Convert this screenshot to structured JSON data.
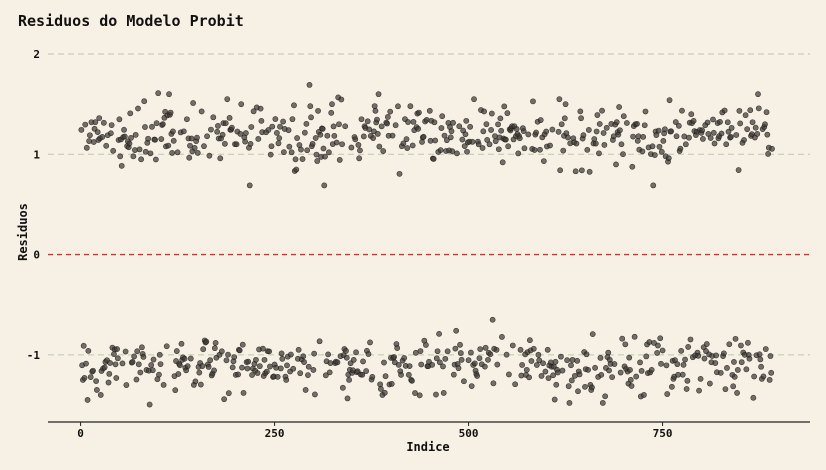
{
  "colors": {
    "background": "#f7f0e4",
    "point": "#3e3a36",
    "reference_line": "#d9302a",
    "grid": "#b9c9a8"
  },
  "chart_data": {
    "type": "scatter",
    "title": "Residuos do Modelo Probit",
    "xlabel": "Indice",
    "ylabel": "Residuos",
    "xlim": [
      -42,
      940
    ],
    "ylim": [
      -1.67,
      2.2
    ],
    "x_ticks": [
      0,
      250,
      500,
      750
    ],
    "x_tick_labels": [
      "0",
      "250",
      "500",
      "750"
    ],
    "y_ticks": [
      -1,
      0,
      1,
      2
    ],
    "y_tick_labels": [
      "-1",
      "0",
      "1",
      "2"
    ],
    "grid": "horizontal dashed at y ticks",
    "reference_line": {
      "y": 0,
      "style": "dashed",
      "color": "#d9302a"
    },
    "series": [
      {
        "n_points": 891,
        "x_start": 1,
        "x_end": 891,
        "positive_cluster": {
          "center": 1.2,
          "approx_range": [
            0.7,
            1.95
          ],
          "values_sample": [
            1.1,
            0.92,
            1.3,
            1.22,
            1.25,
            1.18,
            1.15,
            1.2,
            1.02,
            1.28,
            1.6,
            1.45,
            1.35,
            0.85,
            1.32,
            1.44,
            1.38,
            1.2,
            1.1,
            1.15,
            0.98,
            1.26,
            1.52,
            1.05,
            1.2,
            1.3,
            1.76,
            0.95,
            1.62,
            1.4,
            1.08,
            1.55,
            1.12,
            1.62,
            0.69,
            1.42,
            1.3,
            1.25,
            0.8,
            1.53,
            1.35,
            1.18,
            1.48,
            1.54,
            1.2,
            1.61,
            1.3,
            1.1,
            1.45,
            1.22,
            1.38,
            1.52,
            1.1,
            1.5,
            1.3,
            0.96,
            0.74,
            1.5,
            1.1,
            1.22,
            1.6,
            1.95,
            1.3,
            1.0,
            0.82,
            1.28,
            1.2
          ]
        },
        "negative_cluster": {
          "center": -1.1,
          "approx_range": [
            -1.5,
            -0.65
          ],
          "values_sample": [
            -1.25,
            -1.0,
            -0.95,
            -1.22,
            -0.78,
            -1.1,
            -1.35,
            -1.2,
            -1.05,
            -0.88,
            -1.3,
            -1.18,
            -0.95,
            -1.1,
            -1.38,
            -1.22,
            -0.82,
            -1.15,
            -1.3,
            -0.76,
            -1.45,
            -1.05,
            -1.2,
            -0.9,
            -1.4,
            -1.1,
            -1.45,
            -1.0,
            -1.35,
            -0.9,
            -1.48,
            -1.2,
            -1.05,
            -0.75,
            -1.25,
            -1.4,
            -1.1,
            -1.45,
            -0.65,
            -1.2,
            -0.95,
            -1.3,
            -1.05,
            -0.85,
            -1.25,
            -0.65,
            -1.38,
            -1.15,
            -1.0,
            -1.3,
            -0.95,
            -1.2
          ]
        }
      }
    ]
  }
}
